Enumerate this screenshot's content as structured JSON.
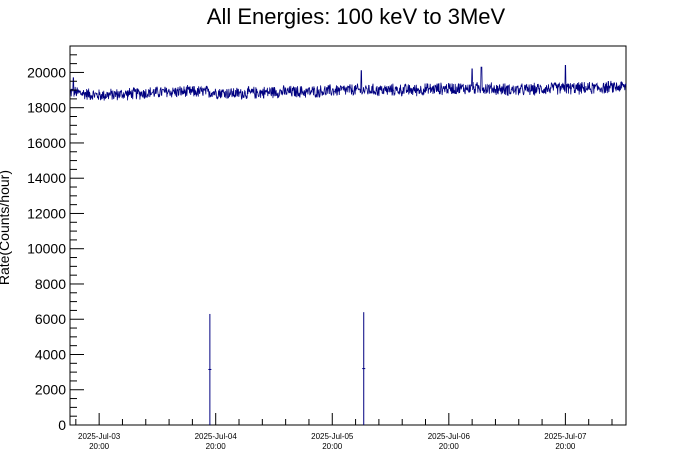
{
  "chart_data": {
    "type": "line",
    "title": "All Energies:  100 keV to 3MeV",
    "xlabel": "",
    "ylabel": "Rate(Counts/hour)",
    "ylim": [
      0,
      21500
    ],
    "xlim": [
      -0.25,
      4.52
    ],
    "yticks": [
      0,
      2000,
      4000,
      6000,
      8000,
      10000,
      12000,
      14000,
      16000,
      18000,
      20000
    ],
    "xticks": [
      {
        "x": 0,
        "date": "2025-Jul-03",
        "time": "20:00"
      },
      {
        "x": 1,
        "date": "2025-Jul-04",
        "time": "20:00"
      },
      {
        "x": 2,
        "date": "2025-Jul-05",
        "time": "20:00"
      },
      {
        "x": 3,
        "date": "2025-Jul-06",
        "time": "20:00"
      },
      {
        "x": 4,
        "date": "2025-Jul-07",
        "time": "20:00"
      }
    ],
    "baseline": {
      "mean_points": [
        [
          -0.25,
          18900
        ],
        [
          0.0,
          18700
        ],
        [
          0.3,
          18800
        ],
        [
          0.6,
          18900
        ],
        [
          0.9,
          18900
        ],
        [
          1.2,
          18800
        ],
        [
          1.5,
          18900
        ],
        [
          1.8,
          18900
        ],
        [
          2.1,
          19000
        ],
        [
          2.4,
          19000
        ],
        [
          2.7,
          19000
        ],
        [
          3.0,
          19100
        ],
        [
          3.3,
          19100
        ],
        [
          3.6,
          19000
        ],
        [
          3.9,
          19100
        ],
        [
          4.2,
          19100
        ],
        [
          4.52,
          19200
        ]
      ],
      "noise_amplitude": 400,
      "peaks": [
        [
          -0.22,
          19700
        ],
        [
          2.25,
          20100
        ],
        [
          3.2,
          20200
        ],
        [
          4.0,
          20400
        ],
        [
          3.28,
          20300
        ]
      ]
    },
    "spikes": [
      {
        "x": 0.95,
        "value": 6300,
        "mid": 3150
      },
      {
        "x": 2.27,
        "value": 6400,
        "mid": 3200
      }
    ],
    "line_color": "#000080",
    "grid": false,
    "legend": "none"
  }
}
